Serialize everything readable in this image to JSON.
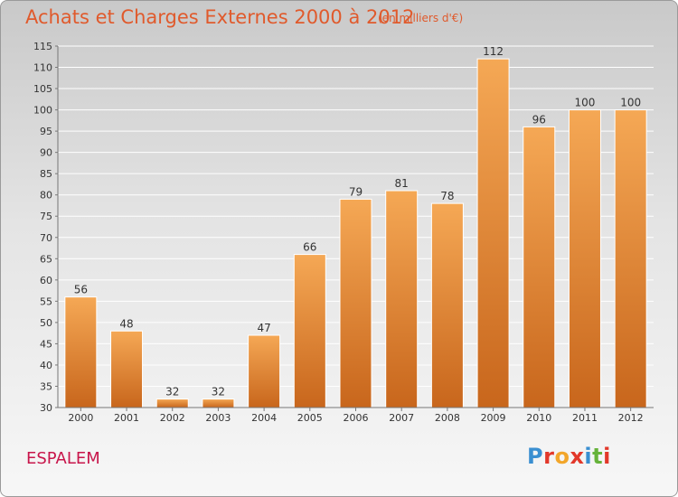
{
  "header": {
    "title": "Achats et Charges Externes 2000 à 2012",
    "subtitle": "(en milliers d'€)"
  },
  "footer": {
    "commune": "ESPALEM",
    "logo": "Proxiti"
  },
  "colors": {
    "bar_top": "#f5a855",
    "bar_bottom": "#c8661c",
    "title": "#e05a2c",
    "commune": "#c8164b"
  },
  "chart_data": {
    "type": "bar",
    "categories": [
      "2000",
      "2001",
      "2002",
      "2003",
      "2004",
      "2005",
      "2006",
      "2007",
      "2008",
      "2009",
      "2010",
      "2011",
      "2012"
    ],
    "values": [
      56,
      48,
      32,
      32,
      47,
      66,
      79,
      81,
      78,
      112,
      96,
      100,
      100
    ],
    "value_labels": [
      "56",
      "48",
      "32",
      "32",
      "47",
      "66",
      "79",
      "81",
      "78",
      "112",
      "96",
      "100",
      "100"
    ],
    "ylim": [
      30,
      115
    ],
    "yticks": [
      30,
      35,
      40,
      45,
      50,
      55,
      60,
      65,
      70,
      75,
      80,
      85,
      90,
      95,
      100,
      105,
      110,
      115
    ],
    "grid": true
  }
}
